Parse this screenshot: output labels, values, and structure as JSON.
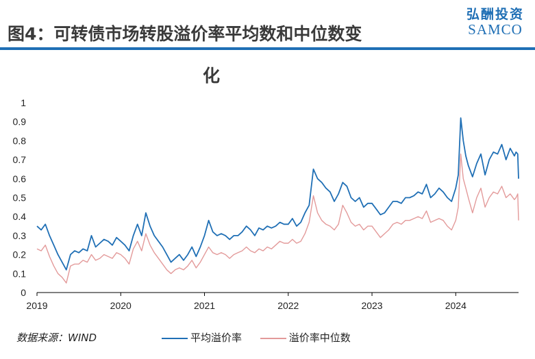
{
  "header": {
    "title": "图4：可转债市场转股溢价率平均数和中位数变",
    "title_cont": "化",
    "logo_cn": "弘酬投资",
    "logo_en": "SAMCO"
  },
  "source": "数据来源：WIND",
  "colors": {
    "mean": "#1f6fb5",
    "median": "#e39a9a",
    "accent": "#1f6fb5"
  },
  "chart_data": {
    "type": "line",
    "title": "可转债市场转股溢价率平均数和中位数变化",
    "xlabel": "",
    "ylabel": "",
    "ylim": [
      0,
      1
    ],
    "xlim": [
      2019.0,
      2024.75
    ],
    "y_ticks": [
      "0",
      "0.1",
      "0.2",
      "0.3",
      "0.4",
      "0.5",
      "0.6",
      "0.7",
      "0.8",
      "0.9",
      "1"
    ],
    "x_ticks": [
      "2019",
      "2020",
      "2021",
      "2022",
      "2023",
      "2024"
    ],
    "series": [
      {
        "name": "平均溢价率",
        "x": [
          2019.0,
          2019.05,
          2019.1,
          2019.15,
          2019.2,
          2019.25,
          2019.3,
          2019.35,
          2019.4,
          2019.45,
          2019.5,
          2019.55,
          2019.6,
          2019.65,
          2019.7,
          2019.75,
          2019.8,
          2019.85,
          2019.9,
          2019.95,
          2020.0,
          2020.05,
          2020.1,
          2020.15,
          2020.2,
          2020.25,
          2020.3,
          2020.35,
          2020.4,
          2020.45,
          2020.5,
          2020.55,
          2020.6,
          2020.65,
          2020.7,
          2020.75,
          2020.8,
          2020.85,
          2020.9,
          2020.95,
          2021.0,
          2021.05,
          2021.1,
          2021.15,
          2021.2,
          2021.25,
          2021.3,
          2021.35,
          2021.4,
          2021.45,
          2021.5,
          2021.55,
          2021.6,
          2021.65,
          2021.7,
          2021.75,
          2021.8,
          2021.85,
          2021.9,
          2021.95,
          2022.0,
          2022.05,
          2022.1,
          2022.15,
          2022.2,
          2022.25,
          2022.3,
          2022.35,
          2022.4,
          2022.45,
          2022.5,
          2022.55,
          2022.6,
          2022.65,
          2022.7,
          2022.75,
          2022.8,
          2022.85,
          2022.9,
          2022.95,
          2023.0,
          2023.05,
          2023.1,
          2023.15,
          2023.2,
          2023.25,
          2023.3,
          2023.35,
          2023.4,
          2023.45,
          2023.5,
          2023.55,
          2023.6,
          2023.65,
          2023.7,
          2023.75,
          2023.8,
          2023.85,
          2023.9,
          2023.95,
          2024.0,
          2024.03,
          2024.06,
          2024.09,
          2024.12,
          2024.15,
          2024.2,
          2024.25,
          2024.3,
          2024.35,
          2024.4,
          2024.45,
          2024.5,
          2024.55,
          2024.6,
          2024.65,
          2024.7,
          2024.72,
          2024.74,
          2024.75
        ],
        "values": [
          0.35,
          0.33,
          0.36,
          0.3,
          0.25,
          0.2,
          0.16,
          0.12,
          0.2,
          0.22,
          0.21,
          0.23,
          0.22,
          0.3,
          0.24,
          0.26,
          0.28,
          0.27,
          0.25,
          0.29,
          0.27,
          0.25,
          0.22,
          0.3,
          0.36,
          0.3,
          0.42,
          0.35,
          0.3,
          0.27,
          0.24,
          0.2,
          0.16,
          0.18,
          0.2,
          0.17,
          0.2,
          0.24,
          0.19,
          0.24,
          0.3,
          0.38,
          0.32,
          0.3,
          0.31,
          0.3,
          0.28,
          0.3,
          0.3,
          0.32,
          0.35,
          0.33,
          0.3,
          0.34,
          0.33,
          0.35,
          0.34,
          0.35,
          0.37,
          0.36,
          0.36,
          0.39,
          0.35,
          0.37,
          0.42,
          0.46,
          0.65,
          0.6,
          0.58,
          0.55,
          0.53,
          0.48,
          0.52,
          0.58,
          0.56,
          0.5,
          0.48,
          0.5,
          0.45,
          0.47,
          0.47,
          0.44,
          0.41,
          0.42,
          0.45,
          0.48,
          0.48,
          0.47,
          0.5,
          0.5,
          0.51,
          0.53,
          0.52,
          0.57,
          0.5,
          0.52,
          0.55,
          0.53,
          0.5,
          0.48,
          0.55,
          0.62,
          0.92,
          0.8,
          0.72,
          0.67,
          0.61,
          0.68,
          0.73,
          0.62,
          0.7,
          0.74,
          0.73,
          0.78,
          0.7,
          0.76,
          0.72,
          0.74,
          0.73,
          0.6
        ]
      },
      {
        "name": "溢价率中位数",
        "x": [
          2019.0,
          2019.05,
          2019.1,
          2019.15,
          2019.2,
          2019.25,
          2019.3,
          2019.35,
          2019.4,
          2019.45,
          2019.5,
          2019.55,
          2019.6,
          2019.65,
          2019.7,
          2019.75,
          2019.8,
          2019.85,
          2019.9,
          2019.95,
          2020.0,
          2020.05,
          2020.1,
          2020.15,
          2020.2,
          2020.25,
          2020.3,
          2020.35,
          2020.4,
          2020.45,
          2020.5,
          2020.55,
          2020.6,
          2020.65,
          2020.7,
          2020.75,
          2020.8,
          2020.85,
          2020.9,
          2020.95,
          2021.0,
          2021.05,
          2021.1,
          2021.15,
          2021.2,
          2021.25,
          2021.3,
          2021.35,
          2021.4,
          2021.45,
          2021.5,
          2021.55,
          2021.6,
          2021.65,
          2021.7,
          2021.75,
          2021.8,
          2021.85,
          2021.9,
          2021.95,
          2022.0,
          2022.05,
          2022.1,
          2022.15,
          2022.2,
          2022.25,
          2022.3,
          2022.35,
          2022.4,
          2022.45,
          2022.5,
          2022.55,
          2022.6,
          2022.65,
          2022.7,
          2022.75,
          2022.8,
          2022.85,
          2022.9,
          2022.95,
          2023.0,
          2023.05,
          2023.1,
          2023.15,
          2023.2,
          2023.25,
          2023.3,
          2023.35,
          2023.4,
          2023.45,
          2023.5,
          2023.55,
          2023.6,
          2023.65,
          2023.7,
          2023.75,
          2023.8,
          2023.85,
          2023.9,
          2023.95,
          2024.0,
          2024.03,
          2024.06,
          2024.09,
          2024.12,
          2024.15,
          2024.2,
          2024.25,
          2024.3,
          2024.35,
          2024.4,
          2024.45,
          2024.5,
          2024.55,
          2024.6,
          2024.65,
          2024.7,
          2024.72,
          2024.74,
          2024.75
        ],
        "values": [
          0.23,
          0.22,
          0.25,
          0.19,
          0.14,
          0.1,
          0.08,
          0.05,
          0.14,
          0.15,
          0.15,
          0.17,
          0.16,
          0.2,
          0.17,
          0.18,
          0.2,
          0.19,
          0.18,
          0.21,
          0.2,
          0.18,
          0.15,
          0.23,
          0.27,
          0.22,
          0.31,
          0.25,
          0.21,
          0.18,
          0.15,
          0.12,
          0.1,
          0.12,
          0.13,
          0.12,
          0.14,
          0.17,
          0.13,
          0.16,
          0.2,
          0.24,
          0.21,
          0.2,
          0.21,
          0.2,
          0.18,
          0.2,
          0.21,
          0.22,
          0.24,
          0.22,
          0.21,
          0.23,
          0.22,
          0.24,
          0.23,
          0.25,
          0.27,
          0.26,
          0.26,
          0.28,
          0.26,
          0.27,
          0.31,
          0.37,
          0.51,
          0.42,
          0.38,
          0.36,
          0.35,
          0.33,
          0.36,
          0.46,
          0.42,
          0.37,
          0.35,
          0.36,
          0.33,
          0.35,
          0.35,
          0.32,
          0.29,
          0.31,
          0.33,
          0.36,
          0.37,
          0.36,
          0.38,
          0.38,
          0.39,
          0.4,
          0.39,
          0.43,
          0.37,
          0.38,
          0.39,
          0.38,
          0.35,
          0.33,
          0.38,
          0.45,
          0.73,
          0.6,
          0.55,
          0.5,
          0.42,
          0.5,
          0.55,
          0.45,
          0.5,
          0.53,
          0.52,
          0.56,
          0.5,
          0.52,
          0.49,
          0.5,
          0.52,
          0.38
        ]
      }
    ]
  }
}
